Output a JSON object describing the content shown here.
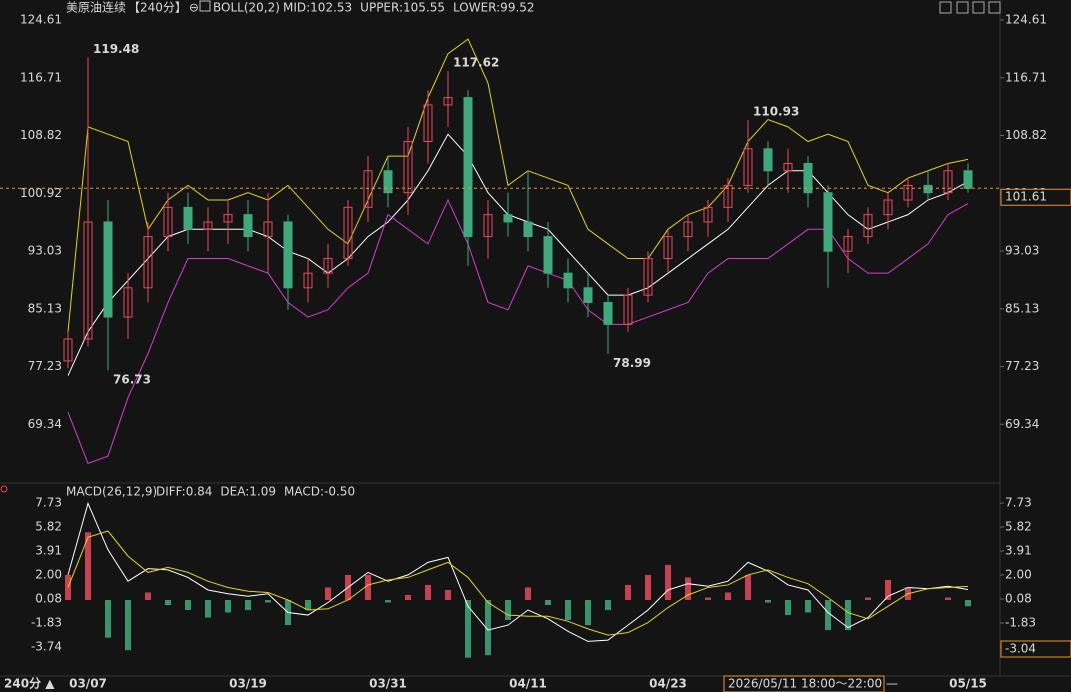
{
  "chart_data": [
    {
      "type": "candlestick",
      "title": "美原油连续",
      "period": "【240分】",
      "icon": "⊖",
      "indicator": "BOLL(20,2)",
      "indicator_texts": [
        {
          "text": "MID:102.53",
          "color": "#ffffff"
        },
        {
          "text": "UPPER:105.55",
          "color": "#e6d21e"
        },
        {
          "text": "LOWER:99.52",
          "color": "#d23cd2"
        }
      ],
      "categories": [
        null,
        "03/07",
        null,
        null,
        null,
        null,
        null,
        null,
        null,
        "03/19",
        null,
        null,
        null,
        null,
        null,
        null,
        "03/31",
        null,
        null,
        null,
        null,
        null,
        null,
        "04/11",
        null,
        null,
        null,
        null,
        null,
        null,
        "04/23",
        null,
        null,
        null,
        null,
        null,
        null,
        null,
        null,
        null,
        null,
        null,
        null,
        null,
        null,
        "05/15"
      ],
      "open": [
        78,
        81,
        97,
        84,
        88,
        95,
        99,
        96,
        97,
        98,
        95,
        97,
        88,
        90,
        92,
        99,
        104,
        101,
        108,
        113,
        114,
        95,
        98,
        97,
        95,
        90,
        88,
        86,
        83,
        87,
        92,
        95,
        97,
        99,
        102,
        107,
        104,
        105,
        101,
        93,
        95,
        98,
        100,
        102,
        101,
        104
      ],
      "high": [
        82,
        119.48,
        100,
        90,
        97,
        101,
        101,
        99,
        100,
        100,
        101,
        98,
        92,
        94,
        100,
        106,
        106,
        110,
        115,
        117.62,
        115,
        100,
        101,
        104,
        97,
        92,
        90,
        87,
        88,
        93,
        96,
        98,
        100,
        103,
        110.93,
        108,
        107,
        106,
        102,
        96,
        99,
        101,
        103,
        104,
        105,
        105
      ],
      "low": [
        77,
        80,
        76.73,
        81,
        86,
        93,
        94,
        93,
        94,
        93,
        90,
        85,
        86,
        88,
        91,
        97,
        99,
        98,
        105,
        110,
        91,
        92,
        95,
        93,
        88,
        86,
        84,
        78.99,
        82,
        86,
        90,
        93,
        95,
        97,
        101,
        102,
        101,
        99,
        88,
        90,
        94,
        96,
        99,
        100,
        100,
        101
      ],
      "close": [
        81,
        97,
        84,
        88,
        95,
        99,
        96,
        97,
        98,
        95,
        97,
        88,
        90,
        92,
        99,
        104,
        101,
        108,
        113,
        114,
        95,
        98,
        97,
        95,
        90,
        88,
        86,
        83,
        87,
        92,
        95,
        97,
        99,
        102,
        107,
        104,
        105,
        101,
        93,
        95,
        98,
        100,
        102,
        101,
        104,
        101.61
      ],
      "extremes": [
        {
          "at": 1,
          "kind": "high"
        },
        {
          "at": 19,
          "kind": "high"
        },
        {
          "at": 34,
          "kind": "high"
        },
        {
          "at": 2,
          "kind": "low"
        },
        {
          "at": 27,
          "kind": "low"
        }
      ],
      "up_color": "#e8495a",
      "down_color": "#3fa97c",
      "last_color": "#f0922c",
      "series": [
        {
          "name": "MID",
          "color": "#ffffff",
          "values": [
            76,
            82,
            86,
            89,
            92,
            95,
            96,
            96,
            96,
            96,
            95,
            93,
            92,
            90,
            92,
            95,
            97,
            100,
            104,
            109,
            106,
            101,
            98,
            97,
            96,
            93,
            90,
            87,
            87,
            88,
            90,
            92,
            94,
            96,
            99,
            102,
            104,
            104,
            101,
            98,
            96,
            97,
            98,
            100,
            101,
            102.53
          ]
        },
        {
          "name": "UPPER",
          "color": "#e6d21e",
          "values": [
            82,
            110,
            109,
            108,
            96,
            100,
            102,
            100,
            100,
            101,
            100,
            102,
            99,
            96,
            94,
            100,
            106,
            106,
            114,
            120,
            122,
            116,
            102,
            104,
            103,
            102,
            96,
            94,
            92,
            92,
            96,
            98,
            99,
            102,
            108,
            111,
            110,
            108,
            109,
            108,
            102,
            101,
            103,
            104,
            105,
            105.55
          ]
        },
        {
          "name": "LOWER",
          "color": "#d23cd2",
          "values": [
            71,
            64,
            65,
            73,
            79,
            86,
            92,
            92,
            92,
            91,
            90,
            86,
            84,
            85,
            88,
            90,
            98,
            96,
            94,
            100,
            94,
            86,
            85,
            91,
            90,
            89,
            85,
            83,
            83,
            84,
            85,
            86,
            90,
            92,
            92,
            92,
            94,
            96,
            96,
            92,
            90,
            90,
            92,
            94,
            98,
            99.52
          ]
        }
      ],
      "ylim": [
        62,
        126.25
      ],
      "yticks": [
        124.61,
        116.71,
        108.82,
        100.92,
        93.03,
        85.13,
        77.23,
        69.34
      ]
    },
    {
      "type": "macd",
      "title": "MACD(26,12,9)",
      "indicator_texts": [
        {
          "text": "DIFF:0.84",
          "color": "#ffffff"
        },
        {
          "text": "DEA:1.09",
          "color": "#e6d21e"
        },
        {
          "text": "MACD:-0.50",
          "color": "#d23cd2"
        }
      ],
      "series": [
        {
          "name": "DIFF",
          "color": "#ffffff",
          "values": [
            2.0,
            7.7,
            4.0,
            1.5,
            2.5,
            2.4,
            1.8,
            0.8,
            0.5,
            0.3,
            0.5,
            -1.0,
            -1.2,
            -0.2,
            1.0,
            2.2,
            1.5,
            2.0,
            3.0,
            3.4,
            -0.5,
            -2.4,
            -2.0,
            -0.8,
            -1.5,
            -2.5,
            -3.3,
            -3.2,
            -2.0,
            -0.8,
            0.8,
            1.3,
            1.1,
            1.5,
            3.0,
            2.3,
            1.2,
            0.8,
            -1.0,
            -2.2,
            -1.4,
            0.3,
            1.0,
            0.9,
            1.1,
            0.84
          ]
        },
        {
          "name": "DEA",
          "color": "#e6d21e",
          "values": [
            1.0,
            5.0,
            5.5,
            3.5,
            2.2,
            2.6,
            2.2,
            1.5,
            1.0,
            0.7,
            0.6,
            0.0,
            -0.8,
            -0.7,
            0.0,
            1.2,
            1.6,
            1.8,
            2.4,
            3.0,
            1.8,
            -0.2,
            -1.2,
            -1.3,
            -1.3,
            -1.7,
            -2.3,
            -2.8,
            -2.6,
            -1.8,
            -0.6,
            0.4,
            1.0,
            1.2,
            2.0,
            2.4,
            1.8,
            1.3,
            0.2,
            -1.0,
            -1.5,
            -0.5,
            0.5,
            0.9,
            1.0,
            1.09
          ]
        }
      ],
      "histogram": {
        "name": "MACD",
        "up_color": "#e8495a",
        "down_color": "#3fa97c",
        "values": [
          2.0,
          5.4,
          -3.0,
          -4.0,
          0.6,
          -0.4,
          -0.8,
          -1.4,
          -1.0,
          -0.8,
          -0.2,
          -2.0,
          -0.8,
          1.0,
          2.0,
          2.0,
          -0.2,
          0.4,
          1.2,
          0.8,
          -4.6,
          -4.4,
          -1.6,
          1.0,
          -0.4,
          -1.6,
          -2.0,
          -0.8,
          1.2,
          2.0,
          2.8,
          1.8,
          0.2,
          0.6,
          2.0,
          -0.2,
          -1.2,
          -1.0,
          -2.4,
          -2.4,
          0.2,
          1.6,
          1.0,
          0.0,
          0.2,
          -0.5
        ]
      },
      "ylim": [
        -5.74,
        8.61
      ],
      "yticks": [
        7.73,
        5.82,
        3.91,
        {
          "value": 2,
          "label": "2.00"
        },
        0.08,
        -1.83,
        -3.74
      ],
      "cursor_label": "-3.04"
    }
  ],
  "footer": {
    "period": "240分 ▲",
    "cursor_time": "2026/05/11 18:00～22:00 —"
  }
}
